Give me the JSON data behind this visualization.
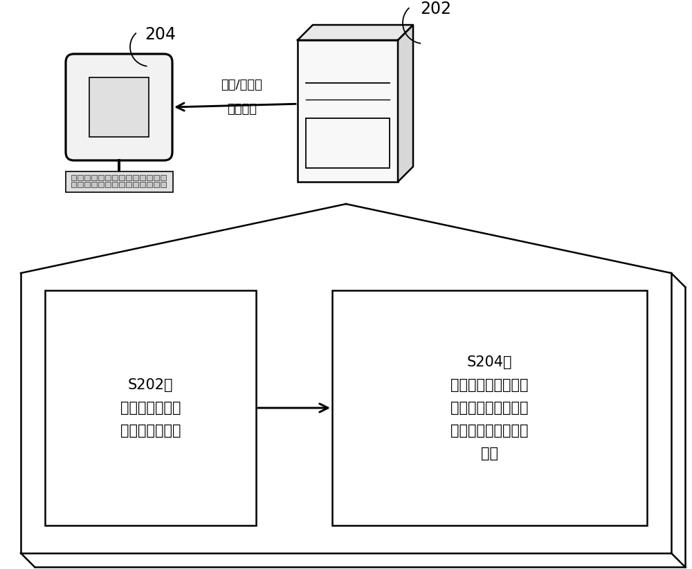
{
  "bg_color": "#ffffff",
  "line_color": "#000000",
  "label_202": "202",
  "label_204": "204",
  "arrow_label_line1": "打印/不打印",
  "arrow_label_line2": "错误日志",
  "box1_label": "S202，\n在编程组件中获\n取报错的字符串",
  "box2_label": "S204，\n当字符串中包含预设\n关键字时，确定不打\n印字符串对应的错误\n日志",
  "font_size_label": 13,
  "font_size_box": 15,
  "font_size_num": 15
}
